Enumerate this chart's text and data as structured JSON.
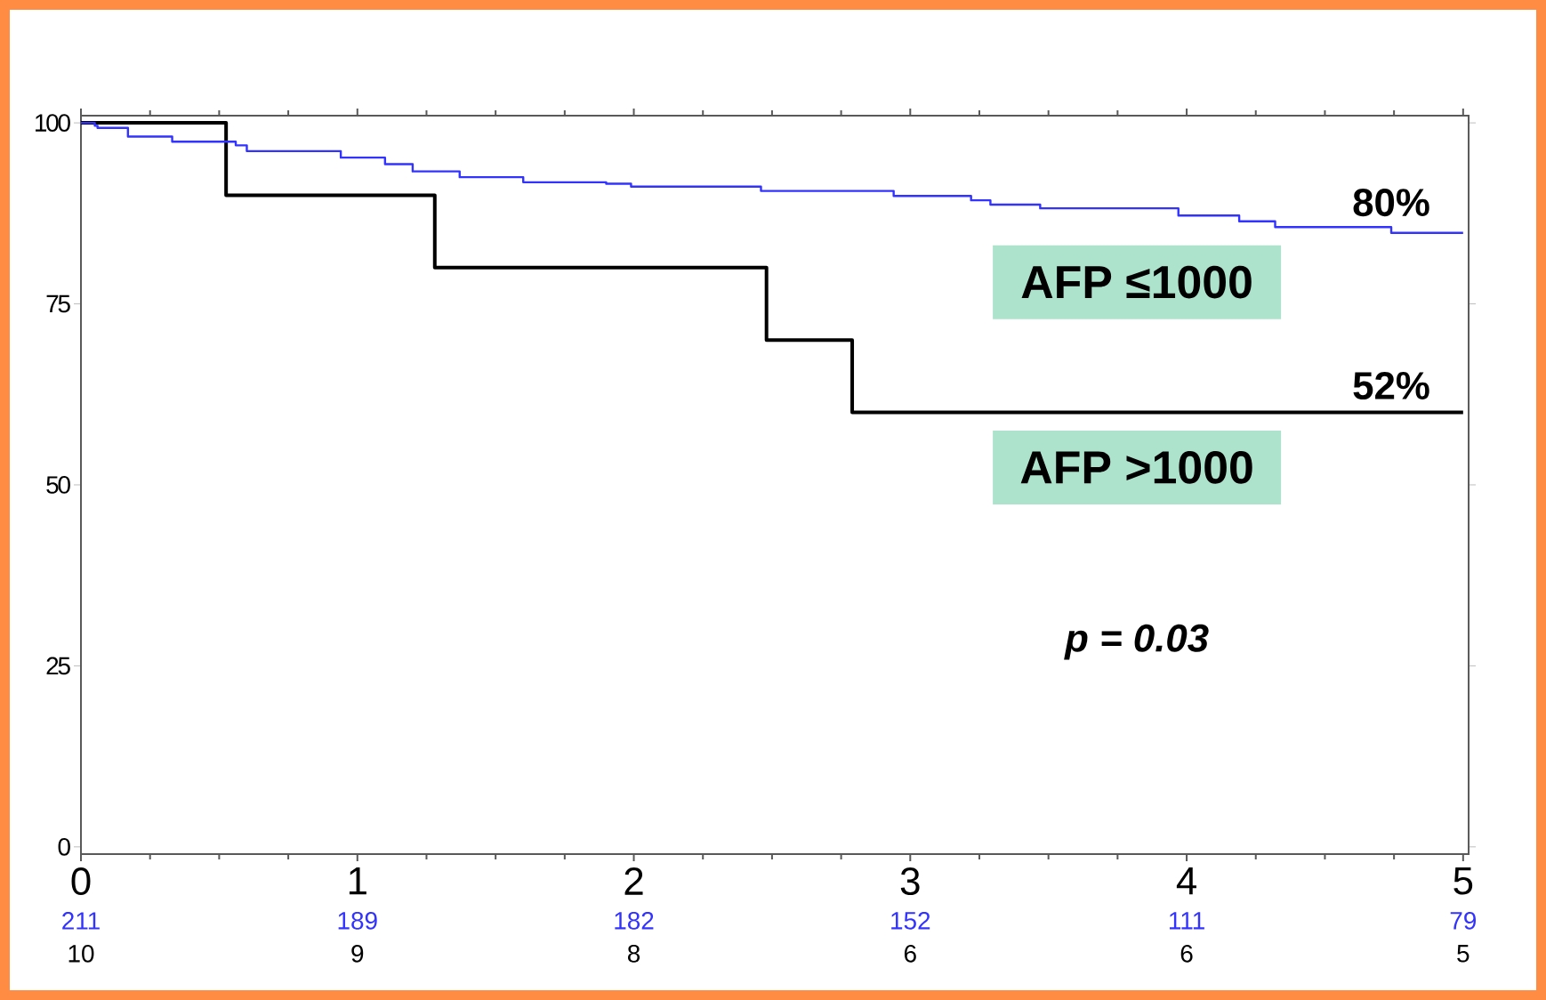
{
  "chart_data": {
    "type": "step",
    "series": [
      {
        "name": "AFP ≤1000",
        "color": "#3333ff",
        "x": [
          0,
          0.05,
          0.06,
          0.17,
          0.33,
          0.56,
          0.6,
          0.94,
          1.1,
          1.2,
          1.37,
          1.6,
          1.9,
          1.99,
          2.46,
          2.94,
          3.22,
          3.29,
          3.47,
          3.97,
          4.19,
          4.32,
          4.74,
          5.0
        ],
        "values": [
          100,
          99.6,
          99.3,
          98.1,
          97.4,
          96.9,
          96.1,
          95.2,
          94.3,
          93.3,
          92.5,
          91.8,
          91.6,
          91.2,
          90.6,
          89.9,
          89.3,
          88.7,
          88.2,
          87.2,
          86.4,
          85.6,
          84.8,
          84.8
        ]
      },
      {
        "name": "AFP >1000",
        "color": "#000000",
        "x": [
          0,
          0.525,
          1.28,
          2.48,
          2.79,
          5.0
        ],
        "values": [
          100,
          90,
          80,
          70,
          60,
          60
        ]
      }
    ],
    "xlim": [
      0,
      5.02
    ],
    "ylim": [
      -1,
      101
    ],
    "xticks": [
      0,
      1,
      2,
      3,
      4,
      5
    ],
    "yticks": [
      0,
      25,
      50,
      75,
      100
    ],
    "annotations": [
      "80%",
      "52%",
      "p = 0.03",
      "211",
      "189",
      "182",
      "152",
      "111",
      "79",
      "10",
      "9",
      "8",
      "6",
      "6",
      "5"
    ]
  }
}
